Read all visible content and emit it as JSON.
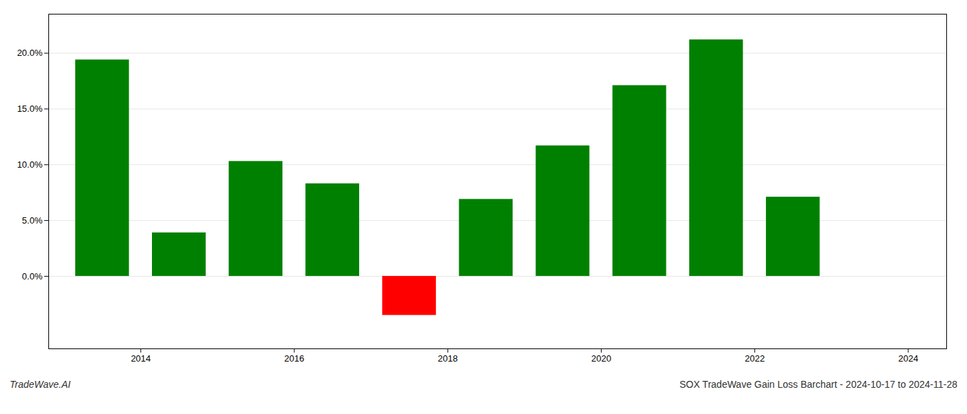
{
  "chart_data": {
    "type": "bar",
    "title": "SOX TradeWave Gain Loss Barchart - 2024-10-17 to 2024-11-28",
    "annotations": [
      "TradeWave.AI"
    ],
    "x": [
      2013.5,
      2014.5,
      2015.5,
      2016.5,
      2017.5,
      2018.5,
      2019.5,
      2020.5,
      2021.5,
      2022.5
    ],
    "values": [
      0.194,
      0.039,
      0.103,
      0.083,
      -0.035,
      0.069,
      0.117,
      0.171,
      0.212,
      0.071
    ],
    "colors": [
      "#008000",
      "#008000",
      "#008000",
      "#008000",
      "#ff0000",
      "#008000",
      "#008000",
      "#008000",
      "#008000",
      "#008000"
    ],
    "xlim": [
      2012.8,
      2024.5
    ],
    "xticks": [
      2014,
      2016,
      2018,
      2020,
      2022,
      2024
    ],
    "ylim": [
      -0.065,
      0.235
    ],
    "yticks": [
      {
        "value": 0.0,
        "label": "0.0%"
      },
      {
        "value": 0.05,
        "label": "5.0%"
      },
      {
        "value": 0.1,
        "label": "10.0%"
      },
      {
        "value": 0.15,
        "label": "15.0%"
      },
      {
        "value": 0.2,
        "label": "20.0%"
      }
    ],
    "grid": true
  }
}
